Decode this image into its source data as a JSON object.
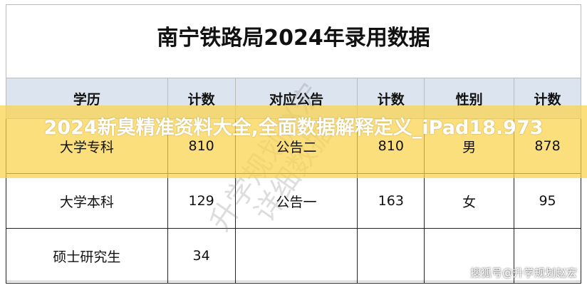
{
  "title": "南宁铁路局2024年录用数据",
  "headers": [
    "学历",
    "计数",
    "对应公告",
    "计数",
    "性别",
    "计数"
  ],
  "rows": [
    [
      "大学专科",
      "810",
      "公告二",
      "810",
      "男",
      "878"
    ],
    [
      "大学本科",
      "129",
      "公告一",
      "163",
      "女",
      "95"
    ],
    [
      "硕士研究生",
      "34",
      "",
      "",
      "",
      ""
    ]
  ],
  "watermark": [
    "升学规划赵宏",
    "详细数据"
  ],
  "banner": "2024新臭精准资料大全,全面数据解释定义_iPad18.973",
  "source": "搜狐号@升学规划赵宏"
}
